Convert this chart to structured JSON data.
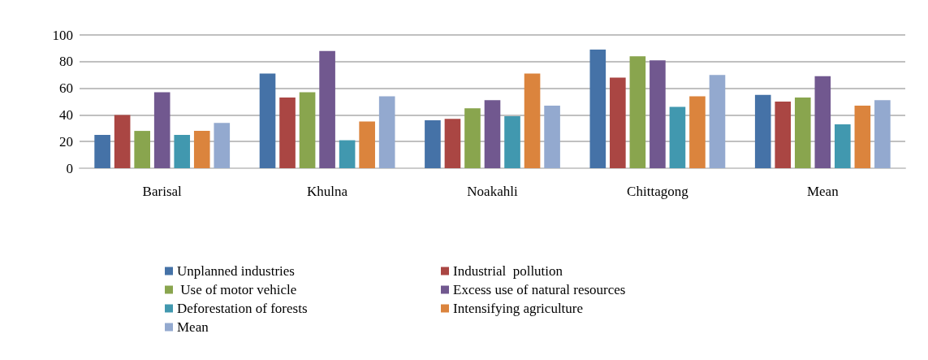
{
  "chart_data": {
    "type": "bar",
    "categories": [
      "Barisal",
      "Khulna",
      "Noakahli",
      "Chittagong",
      "Mean"
    ],
    "series": [
      {
        "name": "Unplanned industries",
        "color": "#4572a7",
        "values": [
          25,
          71,
          36,
          89,
          55
        ]
      },
      {
        "name": "Industrial  pollution",
        "color": "#aa4643",
        "values": [
          40,
          53,
          37,
          68,
          50
        ]
      },
      {
        "name": " Use of motor vehicle",
        "color": "#89a54e",
        "values": [
          28,
          57,
          45,
          84,
          53
        ]
      },
      {
        "name": "Excess use of natural resources",
        "color": "#71588f",
        "values": [
          57,
          88,
          51,
          81,
          69
        ]
      },
      {
        "name": "Deforestation of forests",
        "color": "#4198af",
        "values": [
          25,
          21,
          39,
          46,
          33
        ]
      },
      {
        "name": "Intensifying agriculture",
        "color": "#db843d",
        "values": [
          28,
          35,
          71,
          54,
          47
        ]
      },
      {
        "name": "Mean",
        "color": "#93a9cf",
        "values": [
          34,
          54,
          47,
          70,
          51
        ]
      }
    ],
    "ylim": [
      0,
      100
    ],
    "yticks": [
      0,
      20,
      40,
      60,
      80,
      100
    ],
    "grid": "y",
    "legend": "bottom"
  }
}
